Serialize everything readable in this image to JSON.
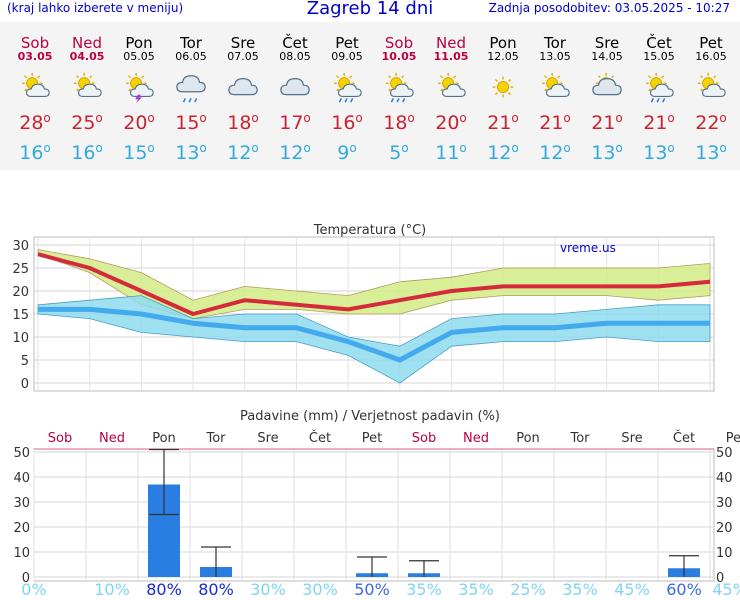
{
  "header": {
    "menu_hint": "(kraj lahko izberete v meniju)",
    "title": "Zagreb 14 dni",
    "updated": "Zadnja posodobitev: 03.05.2025 - 10:27"
  },
  "days": [
    {
      "name": "Sob",
      "date": "03.05",
      "weekend": true,
      "icon": "sun-cloud-icon",
      "tmax": "28",
      "tmin": "16"
    },
    {
      "name": "Ned",
      "date": "04.05",
      "weekend": true,
      "icon": "sun-cloud-icon",
      "tmax": "25",
      "tmin": "16"
    },
    {
      "name": "Pon",
      "date": "05.05",
      "weekend": false,
      "icon": "sun-cloud-lightning-icon",
      "tmax": "20",
      "tmin": "15"
    },
    {
      "name": "Tor",
      "date": "06.05",
      "weekend": false,
      "icon": "cloud-rain-icon",
      "tmax": "15",
      "tmin": "13"
    },
    {
      "name": "Sre",
      "date": "07.05",
      "weekend": false,
      "icon": "cloudy-icon",
      "tmax": "18",
      "tmin": "12"
    },
    {
      "name": "Čet",
      "date": "08.05",
      "weekend": false,
      "icon": "cloudy-icon",
      "tmax": "17",
      "tmin": "12"
    },
    {
      "name": "Pet",
      "date": "09.05",
      "weekend": false,
      "icon": "sun-cloud-rain-icon",
      "tmax": "16",
      "tmin": "9"
    },
    {
      "name": "Sob",
      "date": "10.05",
      "weekend": true,
      "icon": "sun-cloud-rain-icon",
      "tmax": "18",
      "tmin": "5"
    },
    {
      "name": "Ned",
      "date": "11.05",
      "weekend": true,
      "icon": "sun-cloud-icon",
      "tmax": "20",
      "tmin": "11"
    },
    {
      "name": "Pon",
      "date": "12.05",
      "weekend": false,
      "icon": "sun-icon",
      "tmax": "21",
      "tmin": "12"
    },
    {
      "name": "Tor",
      "date": "13.05",
      "weekend": false,
      "icon": "sun-cloud-icon",
      "tmax": "21",
      "tmin": "12"
    },
    {
      "name": "Sre",
      "date": "14.05",
      "weekend": false,
      "icon": "sun-cloudy-icon",
      "tmax": "21",
      "tmin": "13"
    },
    {
      "name": "Čet",
      "date": "15.05",
      "weekend": false,
      "icon": "sun-cloud-rain-icon",
      "tmax": "21",
      "tmin": "13"
    },
    {
      "name": "Pet",
      "date": "16.05",
      "weekend": false,
      "icon": "sun-cloud-icon",
      "tmax": "22",
      "tmin": "13"
    }
  ],
  "colors": {
    "tmax": "#cc2233",
    "tmin": "#33aadd",
    "weekend": "#bb0044",
    "warm_band": "#d4ee8c",
    "cold_band": "#8fdcee",
    "precip_bar": "#2a7de1",
    "prob_low": "#7fd4f4",
    "prob_high": "#1a2ad0"
  },
  "chart_data": [
    {
      "type": "line",
      "title": "Temperatura (°C)",
      "watermark": "vreme.us",
      "categories": [
        "03.05",
        "04.05",
        "05.05",
        "06.05",
        "07.05",
        "08.05",
        "09.05",
        "10.05",
        "11.05",
        "12.05",
        "13.05",
        "14.05",
        "15.05",
        "16.05"
      ],
      "ylim": [
        0,
        30
      ],
      "yticks": [
        "30",
        "25",
        "20",
        "15",
        "10",
        "5",
        "0"
      ],
      "grid": true,
      "series": [
        {
          "values": [
            28,
            25,
            20,
            15,
            18,
            17,
            16,
            18,
            20,
            21,
            21,
            21,
            21,
            22
          ]
        },
        {
          "values": [
            16,
            16,
            15,
            13,
            12,
            12,
            9,
            5,
            11,
            12,
            12,
            13,
            13,
            13
          ]
        }
      ],
      "bands": [
        {
          "upper": [
            29,
            27,
            24,
            18,
            21,
            20,
            19,
            22,
            23,
            25,
            25,
            25,
            25,
            26
          ],
          "lower": [
            28,
            24,
            17,
            14,
            16,
            16,
            15,
            15,
            18,
            19,
            19,
            19,
            18,
            19
          ]
        },
        {
          "upper": [
            17,
            18,
            19,
            14,
            15,
            15,
            10,
            8,
            14,
            15,
            15,
            16,
            17,
            17
          ],
          "lower": [
            15,
            14,
            11,
            10,
            9,
            9,
            6,
            0,
            8,
            9,
            9,
            10,
            9,
            9
          ]
        }
      ]
    },
    {
      "type": "bar",
      "title": "Padavine (mm) / Verjetnost padavin (%)",
      "categories": [
        "Sob",
        "Ned",
        "Pon",
        "Tor",
        "Sre",
        "Čet",
        "Pet",
        "Sob",
        "Ned",
        "Pon",
        "Tor",
        "Sre",
        "Čet",
        "Pet"
      ],
      "weekend": [
        true,
        true,
        false,
        false,
        false,
        false,
        false,
        true,
        true,
        false,
        false,
        false,
        false,
        false
      ],
      "ylim": [
        0,
        50
      ],
      "yticks": [
        "50",
        "40",
        "30",
        "20",
        "10",
        "0"
      ],
      "grid": true,
      "values": [
        0,
        0,
        37,
        4,
        0,
        0,
        1.5,
        1.5,
        0,
        0,
        0,
        0,
        3.5,
        0
      ],
      "error_upper": [
        null,
        null,
        51,
        12,
        null,
        null,
        8,
        6.5,
        null,
        null,
        null,
        null,
        8.5,
        null
      ],
      "error_lower": [
        null,
        null,
        25,
        0,
        null,
        null,
        0,
        0,
        null,
        null,
        null,
        null,
        0,
        null
      ],
      "probability": [
        "0%",
        "10%",
        "80%",
        "80%",
        "30%",
        "30%",
        "50%",
        "35%",
        "35%",
        "25%",
        "35%",
        "45%",
        "60%",
        "45%"
      ]
    }
  ]
}
